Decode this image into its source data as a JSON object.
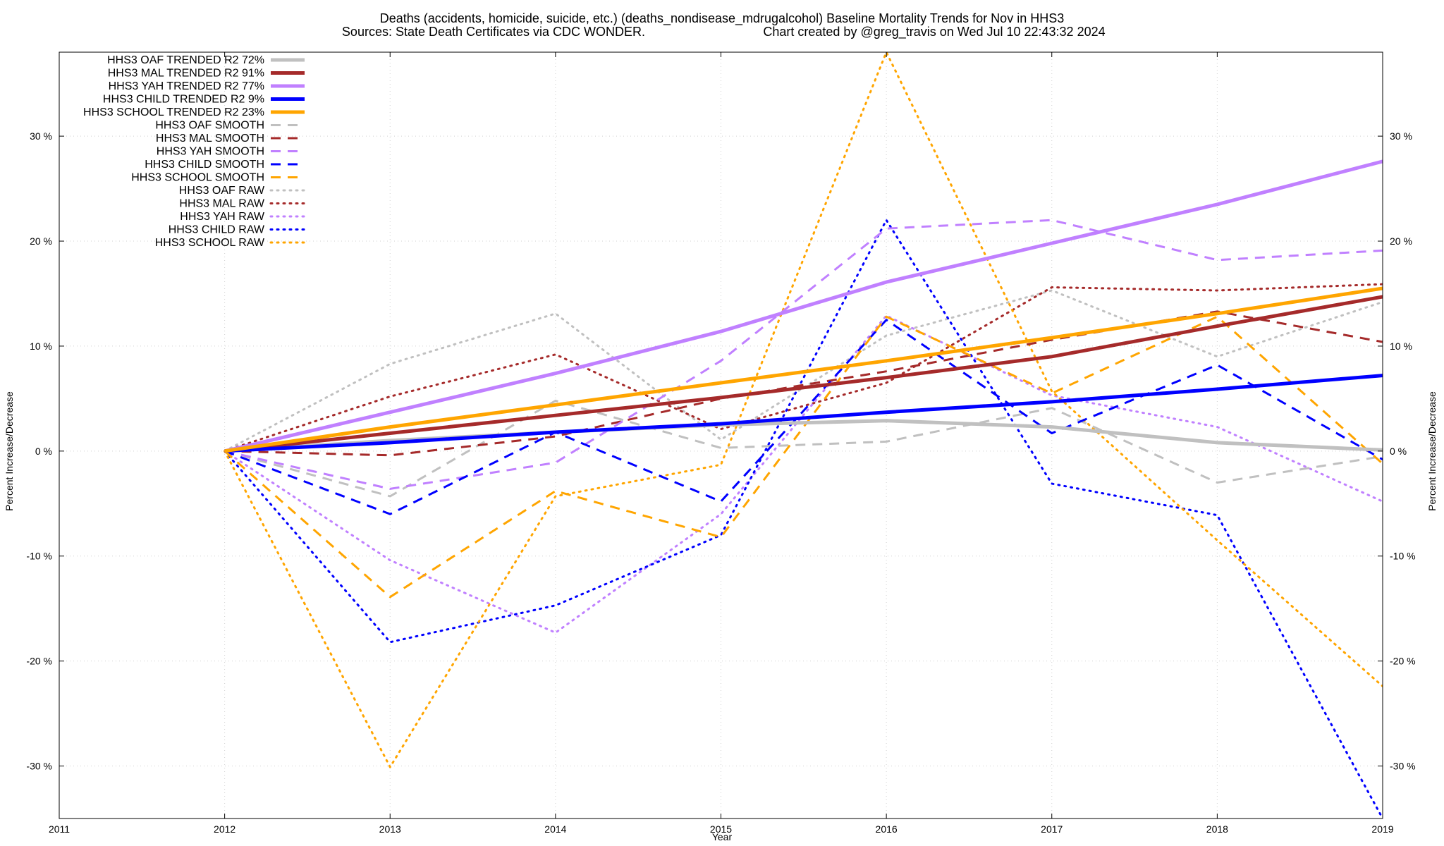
{
  "chart_data": {
    "type": "line",
    "title_line1": "Deaths (accidents, homicide, suicide, etc.) (deaths_nondisease_mdrugalcohol)  Baseline Mortality Trends for Nov in HHS3",
    "title_line2_left": "Sources: State Death Certificates via CDC WONDER.",
    "title_line2_right": "Chart created by @greg_travis on Wed Jul 10 22:43:32 2024",
    "xlabel": "Year",
    "ylabel_left": "Percent Increase/Decrease",
    "ylabel_right": "Percent Increase/Decrease",
    "xlim": [
      2011,
      2019
    ],
    "ylim": [
      -35,
      38
    ],
    "grid": true,
    "legend_position": "top-left",
    "x_ticks": [
      {
        "value": 2011,
        "label": "2011"
      },
      {
        "value": 2012,
        "label": "2012"
      },
      {
        "value": 2013,
        "label": "2013"
      },
      {
        "value": 2014,
        "label": "2014"
      },
      {
        "value": 2015,
        "label": "2015"
      },
      {
        "value": 2016,
        "label": "2016"
      },
      {
        "value": 2017,
        "label": "2017"
      },
      {
        "value": 2018,
        "label": "2018"
      },
      {
        "value": 2019,
        "label": "2019"
      }
    ],
    "y_ticks": [
      {
        "value": 30,
        "label": "30 %"
      },
      {
        "value": 20,
        "label": "20 %"
      },
      {
        "value": 10,
        "label": "10 %"
      },
      {
        "value": 0,
        "label": "0 %"
      },
      {
        "value": -10,
        "label": "-10 %"
      },
      {
        "value": -20,
        "label": "-20 %"
      },
      {
        "value": -30,
        "label": "-30 %"
      }
    ],
    "x": [
      2012,
      2013,
      2014,
      2015,
      2016,
      2017,
      2018,
      2019
    ],
    "series": [
      {
        "name": "HHS3 OAF TRENDED R2",
        "r2": "72%",
        "style": "solid",
        "color": "#c0c0c0",
        "width": 5,
        "values": [
          0,
          1.0,
          1.8,
          2.5,
          2.9,
          2.3,
          0.8,
          0.1
        ]
      },
      {
        "name": "HHS3 MAL TRENDED R2",
        "r2": "91%",
        "style": "solid",
        "color": "#a52a2a",
        "width": 5,
        "values": [
          0,
          1.7,
          3.4,
          5.1,
          7.0,
          9.0,
          11.9,
          14.7
        ]
      },
      {
        "name": "HHS3 YAH TRENDED R2",
        "r2": "77%",
        "style": "solid",
        "color": "#c080ff",
        "width": 5,
        "values": [
          0,
          3.7,
          7.4,
          11.4,
          16.1,
          19.8,
          23.5,
          27.6
        ]
      },
      {
        "name": "HHS3 CHILD TRENDED R2",
        "r2": "9%",
        "style": "solid",
        "color": "#0000ff",
        "width": 5,
        "values": [
          0,
          0.8,
          1.8,
          2.6,
          3.7,
          4.7,
          5.9,
          7.2
        ]
      },
      {
        "name": "HHS3 SCHOOL TRENDED R2",
        "r2": "23%",
        "style": "solid",
        "color": "#ffa500",
        "width": 5,
        "values": [
          0,
          2.3,
          4.4,
          6.5,
          8.6,
          10.8,
          13.1,
          15.5
        ]
      },
      {
        "name": "HHS3 OAF SMOOTH",
        "r2": "",
        "style": "dashed",
        "color": "#c0c0c0",
        "width": 3,
        "values": [
          0,
          -4.3,
          4.8,
          0.3,
          0.9,
          4.1,
          -3.0,
          -0.5
        ]
      },
      {
        "name": "HHS3 MAL SMOOTH",
        "r2": "",
        "style": "dashed",
        "color": "#a52a2a",
        "width": 3,
        "values": [
          0,
          -0.4,
          1.4,
          5.0,
          7.6,
          10.6,
          13.3,
          10.4
        ]
      },
      {
        "name": "HHS3 YAH SMOOTH",
        "r2": "",
        "style": "dashed",
        "color": "#c080ff",
        "width": 3,
        "values": [
          0,
          -3.6,
          -1.1,
          8.6,
          21.2,
          22.0,
          18.2,
          19.1
        ]
      },
      {
        "name": "HHS3 CHILD SMOOTH",
        "r2": "",
        "style": "dashed",
        "color": "#0000ff",
        "width": 3,
        "values": [
          0,
          -6.0,
          1.8,
          -4.8,
          12.5,
          1.7,
          8.2,
          -0.8
        ]
      },
      {
        "name": "HHS3 SCHOOL SMOOTH",
        "r2": "",
        "style": "dashed",
        "color": "#ffa500",
        "width": 3,
        "values": [
          0,
          -13.9,
          -3.8,
          -8.2,
          12.8,
          5.5,
          12.8,
          -1.2
        ]
      },
      {
        "name": "HHS3 OAF RAW",
        "r2": "",
        "style": "dotted",
        "color": "#c0c0c0",
        "width": 3,
        "values": [
          0,
          8.3,
          13.1,
          1.1,
          11.0,
          15.3,
          9.0,
          14.2
        ]
      },
      {
        "name": "HHS3 MAL RAW",
        "r2": "",
        "style": "dotted",
        "color": "#a52a2a",
        "width": 3,
        "values": [
          0,
          5.2,
          9.2,
          2.1,
          6.5,
          15.6,
          15.3,
          15.9
        ]
      },
      {
        "name": "HHS3 YAH RAW",
        "r2": "",
        "style": "dotted",
        "color": "#c080ff",
        "width": 3,
        "values": [
          0,
          -10.4,
          -17.3,
          -6.0,
          12.9,
          5.3,
          2.3,
          -4.8
        ]
      },
      {
        "name": "HHS3 CHILD RAW",
        "r2": "",
        "style": "dotted",
        "color": "#0000ff",
        "width": 3,
        "values": [
          0,
          -18.2,
          -14.7,
          -8.0,
          22.0,
          -3.1,
          -6.1,
          -35.0
        ]
      },
      {
        "name": "HHS3 SCHOOL RAW",
        "r2": "",
        "style": "dotted",
        "color": "#ffa500",
        "width": 3,
        "values": [
          0,
          -30.1,
          -4.3,
          -1.3,
          38.0,
          5.7,
          -8.5,
          -22.4
        ]
      }
    ]
  }
}
